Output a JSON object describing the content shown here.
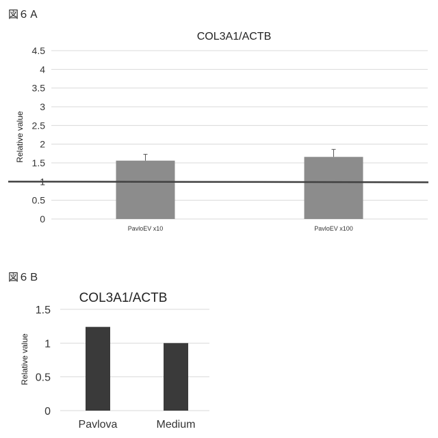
{
  "figures": {
    "a_label": "図６Ａ",
    "b_label": "図６Ｂ"
  },
  "chart_data": [
    {
      "id": "6A",
      "type": "bar",
      "title": "COL3A1/ACTB",
      "xlabel": "",
      "ylabel": "Relative value",
      "categories": [
        "PavloEV x10",
        "PavloEV x100"
      ],
      "values": [
        1.56,
        1.66
      ],
      "error_plus": [
        0.17,
        0.2
      ],
      "ylim": [
        0,
        4.5
      ],
      "yticks": [
        "0",
        "0.5",
        "1",
        "1.5",
        "2",
        "2.5",
        "3",
        "3.5",
        "4",
        "4.5"
      ],
      "ytick_values": [
        0,
        0.5,
        1,
        1.5,
        2,
        2.5,
        3,
        3.5,
        4,
        4.5
      ],
      "reference_line": 1,
      "grid": true,
      "bar_color": "#8c8c8c",
      "line_color": "#404040"
    },
    {
      "id": "6B",
      "type": "bar",
      "title": "COL3A1/ACTB",
      "xlabel": "",
      "ylabel": "Relative value",
      "categories": [
        "Pavlova",
        "Medium"
      ],
      "values": [
        1.24,
        1.0
      ],
      "ylim": [
        0,
        1.5
      ],
      "yticks": [
        "0",
        "0.5",
        "1",
        "1.5"
      ],
      "ytick_values": [
        0,
        0.5,
        1,
        1.5
      ],
      "grid": true,
      "bar_color": "#3a3a3a"
    }
  ]
}
